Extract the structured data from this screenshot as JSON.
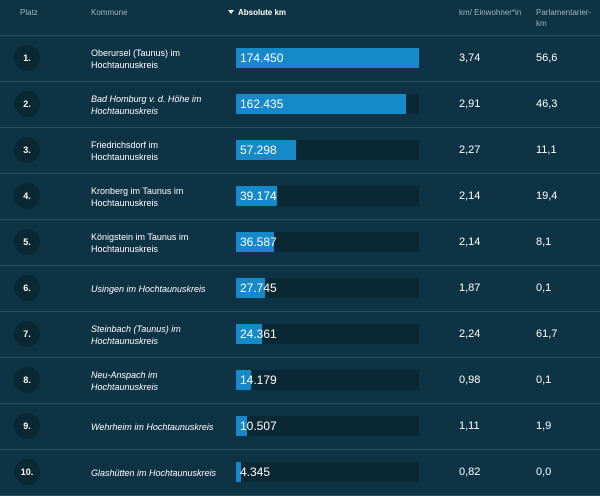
{
  "header": {
    "platz": "Platz",
    "kommune": "Kommune",
    "absolute": "Absolute km",
    "km_per_inhabitant": "km/ Einwohner*in",
    "parliamentarian_km": "Parlamentarier-km"
  },
  "rows": [
    {
      "rank": "1.",
      "name": "Oberursel (Taunus) im Hochtaunuskreis",
      "italic": false,
      "absolute": "174.450",
      "fill": 1.0,
      "km_per": "3,74",
      "parl": "56,6"
    },
    {
      "rank": "2.",
      "name": "Bad Homburg v. d. Höhe im Hochtaunuskreis",
      "italic": true,
      "absolute": "162.435",
      "fill": 0.931,
      "km_per": "2,91",
      "parl": "46,3"
    },
    {
      "rank": "3.",
      "name": "Friedrichsdorf im Hochtaunuskreis",
      "italic": false,
      "absolute": "57.298",
      "fill": 0.328,
      "km_per": "2,27",
      "parl": "11,1"
    },
    {
      "rank": "4.",
      "name": "Kronberg im Taunus im Hochtaunuskreis",
      "italic": false,
      "absolute": "39.174",
      "fill": 0.225,
      "km_per": "2,14",
      "parl": "19,4"
    },
    {
      "rank": "5.",
      "name": "Königstein im Taunus im Hochtaunuskreis",
      "italic": false,
      "absolute": "36.587",
      "fill": 0.21,
      "km_per": "2,14",
      "parl": "8,1"
    },
    {
      "rank": "6.",
      "name": "Usingen im Hochtaunuskreis",
      "italic": true,
      "absolute": "27.745",
      "fill": 0.159,
      "km_per": "1,87",
      "parl": "0,1"
    },
    {
      "rank": "7.",
      "name": "Steinbach (Taunus) im Hochtaunuskreis",
      "italic": true,
      "absolute": "24.361",
      "fill": 0.14,
      "km_per": "2,24",
      "parl": "61,7"
    },
    {
      "rank": "8.",
      "name": "Neu-Anspach im Hochtaunuskreis",
      "italic": true,
      "absolute": "14.179",
      "fill": 0.081,
      "km_per": "0,98",
      "parl": "0,1"
    },
    {
      "rank": "9.",
      "name": "Wehrheim im Hochtaunuskreis",
      "italic": true,
      "absolute": "10.507",
      "fill": 0.06,
      "km_per": "1,11",
      "parl": "1,9"
    },
    {
      "rank": "10.",
      "name": "Glashütten im Hochtaunuskreis",
      "italic": true,
      "absolute": "4.345",
      "fill": 0.025,
      "km_per": "0,82",
      "parl": "0,0"
    }
  ],
  "colors": {
    "background": "#0d3344",
    "bar": "#1689c8",
    "track": "#0a2734"
  }
}
